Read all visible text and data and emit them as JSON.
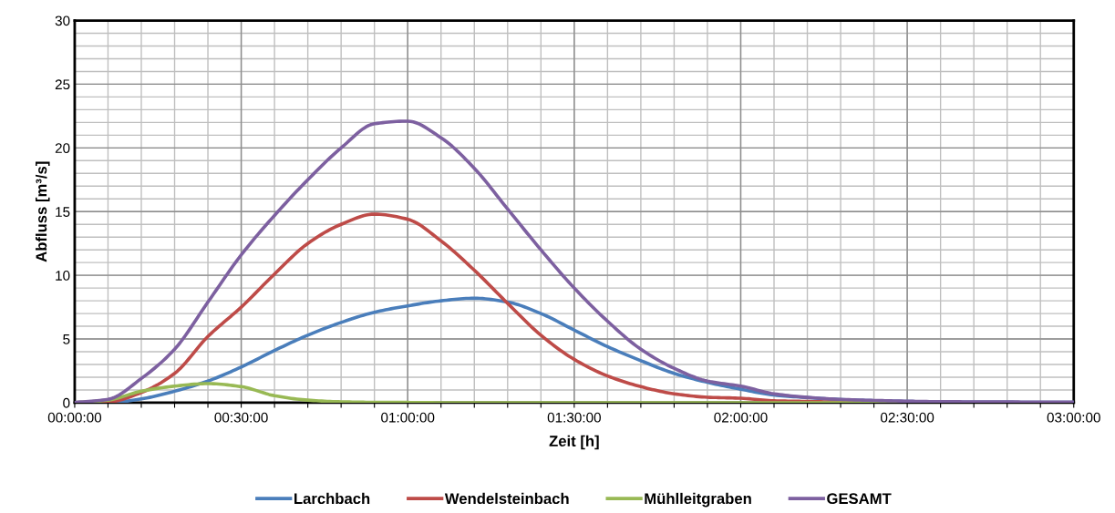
{
  "chart_data": {
    "type": "line",
    "xlabel": "Zeit [h]",
    "ylabel": "Abfluss [m³/s]",
    "x": [
      0,
      0.1,
      0.2,
      0.3,
      0.4,
      0.5,
      0.6,
      0.7,
      0.8,
      0.9,
      1.0,
      1.1,
      1.2,
      1.3,
      1.4,
      1.5,
      1.6,
      1.7,
      1.8,
      1.9,
      2.0,
      2.1,
      2.2,
      2.3,
      2.4,
      2.5,
      2.6,
      2.7,
      2.8,
      2.9,
      3.0
    ],
    "series": [
      {
        "name": "Larchbach",
        "color": "#4a7ebb",
        "values": [
          0,
          0,
          0.3,
          0.9,
          1.7,
          2.8,
          4.1,
          5.3,
          6.3,
          7.1,
          7.6,
          8.0,
          8.2,
          7.9,
          7.0,
          5.7,
          4.4,
          3.3,
          2.3,
          1.6,
          1.06,
          0.6,
          0.4,
          0.25,
          0.16,
          0.1,
          0.06,
          0.05,
          0.04,
          0.03,
          0.03
        ]
      },
      {
        "name": "Wendelsteinbach",
        "color": "#be4b48",
        "values": [
          0,
          0.05,
          0.8,
          2.3,
          5.2,
          7.5,
          10.1,
          12.5,
          14.0,
          14.8,
          14.4,
          12.7,
          10.4,
          7.8,
          5.3,
          3.4,
          2.1,
          1.26,
          0.7,
          0.43,
          0.35,
          0.15,
          0.1,
          0.05,
          0.03,
          null,
          null,
          null,
          null,
          null,
          null
        ]
      },
      {
        "name": "Mühlleitgraben",
        "color": "#98b954",
        "values": [
          0,
          0.2,
          0.9,
          1.3,
          1.5,
          1.26,
          0.55,
          0.2,
          0.07,
          0.03,
          0.02,
          0,
          0,
          0,
          0,
          0,
          0,
          0,
          0,
          0,
          0,
          0,
          0,
          0,
          0,
          0,
          null,
          null,
          null,
          null,
          null
        ]
      },
      {
        "name": "GESAMT",
        "color": "#7d60a0",
        "values": [
          0.02,
          0.26,
          1.9,
          4.2,
          7.9,
          11.6,
          14.7,
          17.5,
          20.0,
          21.9,
          22.1,
          20.8,
          18.4,
          15.2,
          12.0,
          9.0,
          6.4,
          4.2,
          2.7,
          1.7,
          1.3,
          0.7,
          0.42,
          0.26,
          0.18,
          0.12,
          0.08,
          0.07,
          0.06,
          0.05,
          0.05
        ]
      }
    ],
    "xlim": [
      0,
      3
    ],
    "ylim": [
      0,
      30
    ],
    "xticks": [
      {
        "value": 0,
        "label": "00:00:00"
      },
      {
        "value": 0.1,
        "label": null
      },
      {
        "value": 0.2,
        "label": null
      },
      {
        "value": 0.3,
        "label": null
      },
      {
        "value": 0.4,
        "label": null
      },
      {
        "value": 0.5,
        "label": "00:30:00"
      },
      {
        "value": 0.6,
        "label": null
      },
      {
        "value": 0.7,
        "label": null
      },
      {
        "value": 0.8,
        "label": null
      },
      {
        "value": 0.9,
        "label": null
      },
      {
        "value": 1.0,
        "label": "01:00:00"
      },
      {
        "value": 1.1,
        "label": null
      },
      {
        "value": 1.2,
        "label": null
      },
      {
        "value": 1.3,
        "label": null
      },
      {
        "value": 1.4,
        "label": null
      },
      {
        "value": 1.5,
        "label": "01:30:00"
      },
      {
        "value": 1.6,
        "label": null
      },
      {
        "value": 1.7,
        "label": null
      },
      {
        "value": 1.8,
        "label": null
      },
      {
        "value": 1.9,
        "label": null
      },
      {
        "value": 2.0,
        "label": "02:00:00"
      },
      {
        "value": 2.1,
        "label": null
      },
      {
        "value": 2.2,
        "label": null
      },
      {
        "value": 2.3,
        "label": null
      },
      {
        "value": 2.4,
        "label": null
      },
      {
        "value": 2.5,
        "label": "02:30:00"
      },
      {
        "value": 2.6,
        "label": null
      },
      {
        "value": 2.7,
        "label": null
      },
      {
        "value": 2.8,
        "label": null
      },
      {
        "value": 2.9,
        "label": null
      },
      {
        "value": 3.0,
        "label": "03:00:00"
      }
    ],
    "yticks": [
      0,
      {
        "value": 1,
        "label": null
      },
      {
        "value": 2,
        "label": null
      },
      {
        "value": 3,
        "label": null
      },
      {
        "value": 4,
        "label": null
      },
      5,
      {
        "value": 6,
        "label": null
      },
      {
        "value": 7,
        "label": null
      },
      {
        "value": 8,
        "label": null
      },
      {
        "value": 9,
        "label": null
      },
      10,
      {
        "value": 11,
        "label": null
      },
      {
        "value": 12,
        "label": null
      },
      {
        "value": 13,
        "label": null
      },
      {
        "value": 14,
        "label": null
      },
      15,
      {
        "value": 16,
        "label": null
      },
      {
        "value": 17,
        "label": null
      },
      {
        "value": 18,
        "label": null
      },
      {
        "value": 19,
        "label": null
      },
      20,
      {
        "value": 21,
        "label": null
      },
      {
        "value": 22,
        "label": null
      },
      {
        "value": 23,
        "label": null
      },
      {
        "value": 24,
        "label": null
      },
      25,
      {
        "value": 26,
        "label": null
      },
      {
        "value": 27,
        "label": null
      },
      {
        "value": 28,
        "label": null
      },
      {
        "value": 29,
        "label": null
      },
      30
    ],
    "grid": true,
    "legend": "bottom",
    "marker": "none",
    "line_style": "solid"
  }
}
